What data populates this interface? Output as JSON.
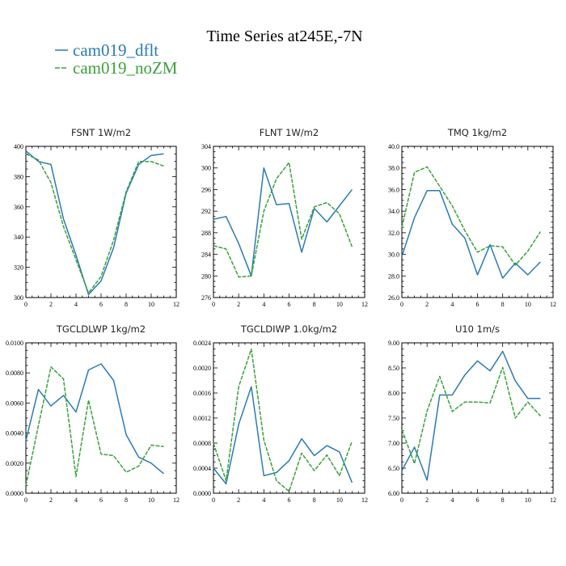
{
  "figure": {
    "title": "Time Series at245E,-7N",
    "legend": [
      {
        "name": "cam019_dflt",
        "color": "#2b7bb4",
        "dash": "solid"
      },
      {
        "name": "cam019_noZM",
        "color": "#3aa13a",
        "dash": "dashed"
      }
    ]
  },
  "chart_data": [
    {
      "type": "line",
      "title": "FSNT   1W/m2",
      "x": [
        0,
        1,
        2,
        3,
        4,
        5,
        6,
        7,
        8,
        9,
        10,
        11
      ],
      "xlim": [
        0,
        12
      ],
      "xticks": [
        "0",
        "2",
        "4",
        "6",
        "8",
        "10",
        "12"
      ],
      "ylim": [
        300,
        400
      ],
      "yticks": [
        "300",
        "320",
        "340",
        "360",
        "380",
        "400"
      ],
      "series": [
        {
          "name": "cam019_dflt",
          "values": [
            397,
            390,
            388,
            352,
            328,
            302,
            311,
            333,
            369,
            388,
            394,
            395
          ]
        },
        {
          "name": "cam019_noZM",
          "values": [
            395,
            391,
            376,
            347,
            325,
            303,
            314,
            338,
            370,
            390,
            390,
            387
          ]
        }
      ]
    },
    {
      "type": "line",
      "title": "FLNT   1W/m2",
      "x": [
        0,
        1,
        2,
        3,
        4,
        5,
        6,
        7,
        8,
        9,
        10,
        11
      ],
      "xlim": [
        0,
        12
      ],
      "xticks": [
        "0",
        "2",
        "4",
        "6",
        "8",
        "10",
        "12"
      ],
      "ylim": [
        276,
        304
      ],
      "yticks": [
        "276",
        "280",
        "284",
        "288",
        "292",
        "296",
        "300",
        "304"
      ],
      "series": [
        {
          "name": "cam019_dflt",
          "values": [
            290.5,
            291,
            286,
            280,
            300,
            293.2,
            293.4,
            284.4,
            292.5,
            290,
            293,
            296
          ]
        },
        {
          "name": "cam019_noZM",
          "values": [
            285.6,
            285,
            279.8,
            280,
            292,
            298,
            301,
            286.8,
            292.8,
            293.6,
            291.5,
            285.4
          ]
        }
      ]
    },
    {
      "type": "line",
      "title": "TMQ   1kg/m2",
      "x": [
        0,
        1,
        2,
        3,
        4,
        5,
        6,
        7,
        8,
        9,
        10,
        11
      ],
      "xlim": [
        0,
        12
      ],
      "xticks": [
        "0",
        "2",
        "4",
        "6",
        "8",
        "10",
        "12"
      ],
      "ylim": [
        26,
        40
      ],
      "yticks": [
        "26.0",
        "28.0",
        "30.0",
        "32.0",
        "34.0",
        "36.0",
        "38.0",
        "40.0"
      ],
      "series": [
        {
          "name": "cam019_dflt",
          "values": [
            29.8,
            33.4,
            35.9,
            35.9,
            32.8,
            31.5,
            28.1,
            30.9,
            27.8,
            29.2,
            28.1,
            29.3
          ]
        },
        {
          "name": "cam019_noZM",
          "values": [
            32.5,
            37.6,
            38.1,
            36.3,
            34.5,
            32.2,
            30.2,
            30.8,
            30.7,
            29.0,
            30.3,
            32.1
          ]
        }
      ]
    },
    {
      "type": "line",
      "title": "TGCLDLWP   1kg/m2",
      "x": [
        0,
        1,
        2,
        3,
        4,
        5,
        6,
        7,
        8,
        9,
        10,
        11
      ],
      "xlim": [
        0,
        12
      ],
      "xticks": [
        "0",
        "2",
        "4",
        "6",
        "8",
        "10",
        "12"
      ],
      "ylim": [
        0,
        0.01
      ],
      "yticks": [
        "0.0000",
        "0.0020",
        "0.0040",
        "0.0060",
        "0.0080",
        "0.0100"
      ],
      "series": [
        {
          "name": "cam019_dflt",
          "values": [
            0.0035,
            0.0069,
            0.0058,
            0.0065,
            0.0054,
            0.0082,
            0.0086,
            0.0075,
            0.0039,
            0.0024,
            0.002,
            0.0013
          ]
        },
        {
          "name": "cam019_noZM",
          "values": [
            0.0005,
            0.0045,
            0.0084,
            0.0076,
            0.0011,
            0.0062,
            0.0026,
            0.0025,
            0.0014,
            0.0018,
            0.0032,
            0.0031
          ]
        }
      ]
    },
    {
      "type": "line",
      "title": "TGCLDIWP   1.0kg/m2",
      "x": [
        0,
        1,
        2,
        3,
        4,
        5,
        6,
        7,
        8,
        9,
        10,
        11
      ],
      "xlim": [
        0,
        12
      ],
      "xticks": [
        "0",
        "2",
        "4",
        "6",
        "8",
        "10",
        "12"
      ],
      "ylim": [
        0,
        0.0024
      ],
      "yticks": [
        "0.0000",
        "0.0004",
        "0.0008",
        "0.0012",
        "0.0016",
        "0.0020",
        "0.0024"
      ],
      "series": [
        {
          "name": "cam019_dflt",
          "values": [
            0.0004,
            0.00015,
            0.0011,
            0.0017,
            0.00028,
            0.00033,
            0.00052,
            0.00087,
            0.0006,
            0.00076,
            0.00066,
            0.00017
          ]
        },
        {
          "name": "cam019_noZM",
          "values": [
            0.0008,
            0.0002,
            0.0017,
            0.0023,
            0.00085,
            0.0002,
            3e-05,
            0.00064,
            0.00036,
            0.00061,
            0.00028,
            0.00083
          ]
        }
      ]
    },
    {
      "type": "line",
      "title": "U10   1m/s",
      "x": [
        0,
        1,
        2,
        3,
        4,
        5,
        6,
        7,
        8,
        9,
        10,
        11
      ],
      "xlim": [
        0,
        12
      ],
      "xticks": [
        "0",
        "2",
        "4",
        "6",
        "8",
        "10",
        "12"
      ],
      "ylim": [
        6,
        9
      ],
      "yticks": [
        "6.00",
        "6.50",
        "7.00",
        "7.50",
        "8.00",
        "8.50",
        "9.00"
      ],
      "series": [
        {
          "name": "cam019_dflt",
          "values": [
            6.45,
            6.92,
            6.26,
            7.96,
            7.96,
            8.36,
            8.64,
            8.44,
            8.83,
            8.24,
            7.89,
            7.89
          ]
        },
        {
          "name": "cam019_noZM",
          "values": [
            7.27,
            6.59,
            7.64,
            8.33,
            7.63,
            7.82,
            7.82,
            7.8,
            8.51,
            7.5,
            7.82,
            7.54
          ]
        }
      ]
    }
  ]
}
